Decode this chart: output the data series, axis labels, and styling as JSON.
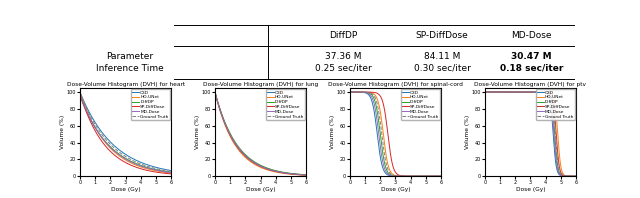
{
  "table_headers": [
    "",
    "DiffDP",
    "SP-DiffDose",
    "MD-Dose"
  ],
  "plot_titles": [
    "Dose-Volume Histogram (DVH) for heart",
    "Dose-Volume Histogram (DVH) for lung",
    "Dose-Volume Histogram (DVH) for spinal-cord",
    "Dose-Volume Histogram (DVH) for ptv"
  ],
  "xlabel": "Dose (Gy)",
  "ylabel": "Volume (%)",
  "legend_labels": [
    "C3D",
    "HD-UNet",
    "DiffDP",
    "SP-DiffDose",
    "MD-Dose",
    "Ground Truth"
  ],
  "line_colors": [
    "#1f77b4",
    "#ff7f0e",
    "#2ca02c",
    "#d62728",
    "#9467bd",
    "#7f7f7f"
  ],
  "line_styles": [
    "-",
    "-",
    "-",
    "-",
    "-",
    "--"
  ],
  "background_color": "#ffffff",
  "row1_col0": "Parameter",
  "row2_col0": "Inference Time",
  "row1_data": [
    "37.36 M",
    "84.11 M",
    "30.47 M"
  ],
  "row2_data": [
    "0.25 sec/iter",
    "0.30 sec/iter",
    "0.18 sec/iter"
  ]
}
